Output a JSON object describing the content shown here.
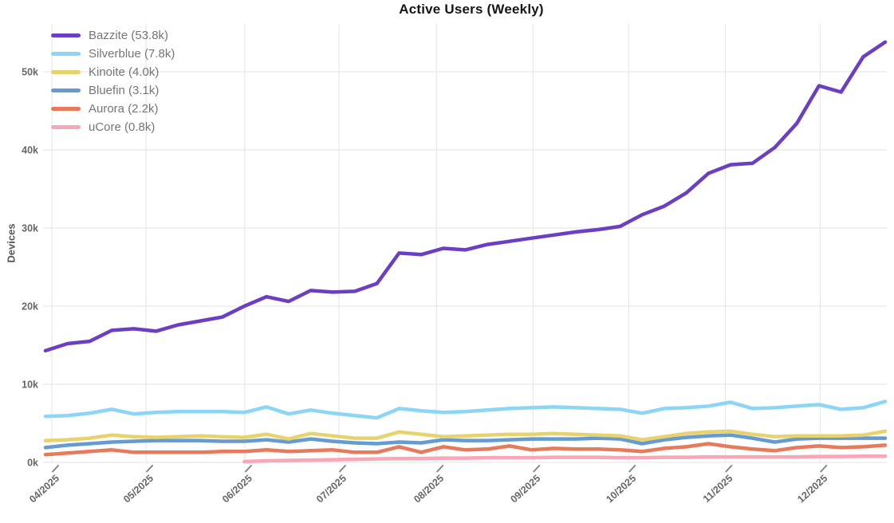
{
  "chart_data": {
    "type": "line",
    "title": "Active Users (Weekly)",
    "xlabel": "",
    "ylabel": "Devices",
    "grid": true,
    "legend_position": "top-left",
    "n_points": 39,
    "x_tick_labels": [
      "04/2025",
      "05/2025",
      "06/2025",
      "07/2025",
      "08/2025",
      "09/2025",
      "10/2025",
      "11/2025",
      "12/2025"
    ],
    "x_tick_positions": [
      0.29,
      4.55,
      9.02,
      13.28,
      17.69,
      22.06,
      26.39,
      30.76,
      35.05
    ],
    "y_tick_labels": [
      "0k",
      "10k",
      "20k",
      "30k",
      "40k",
      "50k"
    ],
    "y_tick_values": [
      0,
      10,
      20,
      30,
      40,
      50
    ],
    "ylim": [
      0,
      56.1
    ],
    "unit": "thousands of devices",
    "series": [
      {
        "name": "Bazzite",
        "legend_label": "Bazzite (53.8k)",
        "current_value": "53.8k",
        "color": "#6a3fc4",
        "values": [
          14.3,
          15.2,
          15.5,
          16.9,
          17.1,
          16.8,
          17.6,
          18.1,
          18.6,
          20.0,
          21.2,
          20.6,
          22.0,
          21.8,
          21.9,
          22.9,
          26.8,
          26.6,
          27.4,
          27.2,
          27.9,
          28.3,
          28.7,
          29.1,
          29.5,
          29.8,
          30.2,
          31.7,
          32.8,
          34.5,
          37.0,
          38.1,
          38.3,
          40.3,
          43.4,
          48.2,
          47.4,
          51.9,
          53.8
        ]
      },
      {
        "name": "Silverblue",
        "legend_label": "Silverblue (7.8k)",
        "current_value": "7.8k",
        "color": "#8dd5f6",
        "values": [
          5.9,
          6.0,
          6.3,
          6.8,
          6.2,
          6.4,
          6.5,
          6.5,
          6.5,
          6.4,
          7.1,
          6.2,
          6.7,
          6.3,
          6.0,
          5.7,
          6.9,
          6.6,
          6.4,
          6.5,
          6.7,
          6.9,
          7.0,
          7.1,
          7.0,
          6.9,
          6.8,
          6.3,
          6.9,
          7.0,
          7.2,
          7.7,
          6.9,
          7.0,
          7.2,
          7.4,
          6.8,
          7.0,
          7.8
        ]
      },
      {
        "name": "Kinoite",
        "legend_label": "Kinoite (4.0k)",
        "current_value": "4.0k",
        "color": "#e7d36d",
        "values": [
          2.8,
          2.9,
          3.1,
          3.5,
          3.3,
          3.2,
          3.3,
          3.4,
          3.3,
          3.2,
          3.6,
          3.0,
          3.7,
          3.4,
          3.1,
          3.1,
          3.9,
          3.6,
          3.3,
          3.4,
          3.5,
          3.6,
          3.6,
          3.7,
          3.6,
          3.5,
          3.4,
          2.9,
          3.3,
          3.7,
          3.9,
          4.0,
          3.6,
          3.3,
          3.4,
          3.4,
          3.4,
          3.5,
          4.0
        ]
      },
      {
        "name": "Bluefin",
        "legend_label": "Bluefin (3.1k)",
        "current_value": "3.1k",
        "color": "#669bd2",
        "values": [
          1.9,
          2.2,
          2.4,
          2.6,
          2.7,
          2.8,
          2.8,
          2.8,
          2.7,
          2.7,
          2.9,
          2.6,
          3.0,
          2.7,
          2.5,
          2.4,
          2.6,
          2.5,
          2.9,
          2.8,
          2.8,
          2.9,
          3.0,
          3.0,
          3.0,
          3.1,
          3.0,
          2.4,
          2.9,
          3.2,
          3.4,
          3.5,
          3.1,
          2.6,
          3.0,
          3.1,
          3.1,
          3.1,
          3.1
        ]
      },
      {
        "name": "Aurora",
        "legend_label": "Aurora (2.2k)",
        "current_value": "2.2k",
        "color": "#e87a5c",
        "values": [
          1.0,
          1.2,
          1.4,
          1.6,
          1.3,
          1.3,
          1.3,
          1.3,
          1.4,
          1.4,
          1.6,
          1.4,
          1.5,
          1.6,
          1.3,
          1.3,
          2.0,
          1.3,
          2.0,
          1.6,
          1.7,
          2.1,
          1.6,
          1.8,
          1.7,
          1.7,
          1.6,
          1.4,
          1.8,
          2.0,
          2.4,
          2.0,
          1.7,
          1.5,
          1.9,
          2.1,
          1.9,
          2.0,
          2.2
        ]
      },
      {
        "name": "uCore",
        "legend_label": "uCore (0.8k)",
        "current_value": "0.8k",
        "color": "#f9a6b9",
        "values": [
          null,
          null,
          null,
          null,
          null,
          null,
          null,
          null,
          null,
          0.1,
          0.2,
          0.25,
          0.3,
          0.35,
          0.4,
          0.45,
          0.5,
          0.5,
          0.55,
          0.55,
          0.6,
          0.6,
          0.6,
          0.65,
          0.65,
          0.65,
          0.6,
          0.6,
          0.65,
          0.65,
          0.7,
          0.7,
          0.7,
          0.7,
          0.7,
          0.75,
          0.75,
          0.8,
          0.8
        ]
      }
    ]
  }
}
